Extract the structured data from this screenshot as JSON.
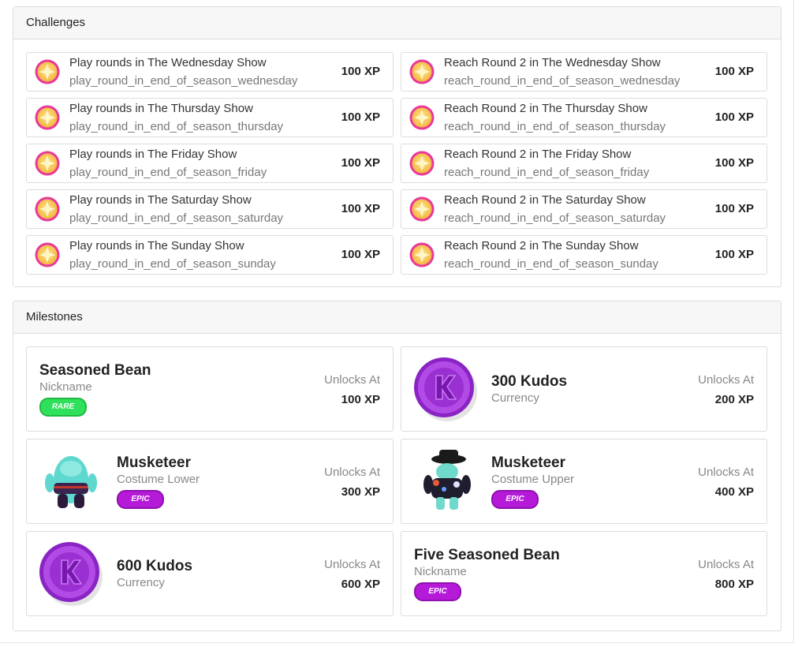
{
  "challenges": {
    "title": "Challenges",
    "items": [
      {
        "title": "Play rounds in The Wednesday Show",
        "id": "play_round_in_end_of_season_wednesday",
        "xp": "100 XP"
      },
      {
        "title": "Reach Round 2 in The Wednesday Show",
        "id": "reach_round_in_end_of_season_wednesday",
        "xp": "100 XP"
      },
      {
        "title": "Play rounds in The Thursday Show",
        "id": "play_round_in_end_of_season_thursday",
        "xp": "100 XP"
      },
      {
        "title": "Reach Round 2 in The Thursday Show",
        "id": "reach_round_in_end_of_season_thursday",
        "xp": "100 XP"
      },
      {
        "title": "Play rounds in The Friday Show",
        "id": "play_round_in_end_of_season_friday",
        "xp": "100 XP"
      },
      {
        "title": "Reach Round 2 in The Friday Show",
        "id": "reach_round_in_end_of_season_friday",
        "xp": "100 XP"
      },
      {
        "title": "Play rounds in The Saturday Show",
        "id": "play_round_in_end_of_season_saturday",
        "xp": "100 XP"
      },
      {
        "title": "Reach Round 2 in The Saturday Show",
        "id": "reach_round_in_end_of_season_saturday",
        "xp": "100 XP"
      },
      {
        "title": "Play rounds in The Sunday Show",
        "id": "play_round_in_end_of_season_sunday",
        "xp": "100 XP"
      },
      {
        "title": "Reach Round 2 in The Sunday Show",
        "id": "reach_round_in_end_of_season_sunday",
        "xp": "100 XP"
      }
    ]
  },
  "milestones": {
    "title": "Milestones",
    "items": [
      {
        "name": "Seasoned Bean",
        "type": "Nickname",
        "rarity": "RARE",
        "unlock_label": "Unlocks At",
        "xp": "100 XP"
      },
      {
        "name": "300 Kudos",
        "type": "Currency",
        "unlock_label": "Unlocks At",
        "xp": "200 XP"
      },
      {
        "name": "Musketeer",
        "type": "Costume Lower",
        "rarity": "EPIC",
        "unlock_label": "Unlocks At",
        "xp": "300 XP"
      },
      {
        "name": "Musketeer",
        "type": "Costume Upper",
        "rarity": "EPIC",
        "unlock_label": "Unlocks At",
        "xp": "400 XP"
      },
      {
        "name": "600 Kudos",
        "type": "Currency",
        "unlock_label": "Unlocks At",
        "xp": "600 XP"
      },
      {
        "name": "Five Seasoned Bean",
        "type": "Nickname",
        "rarity": "EPIC",
        "unlock_label": "Unlocks At",
        "xp": "800 XP"
      }
    ]
  }
}
